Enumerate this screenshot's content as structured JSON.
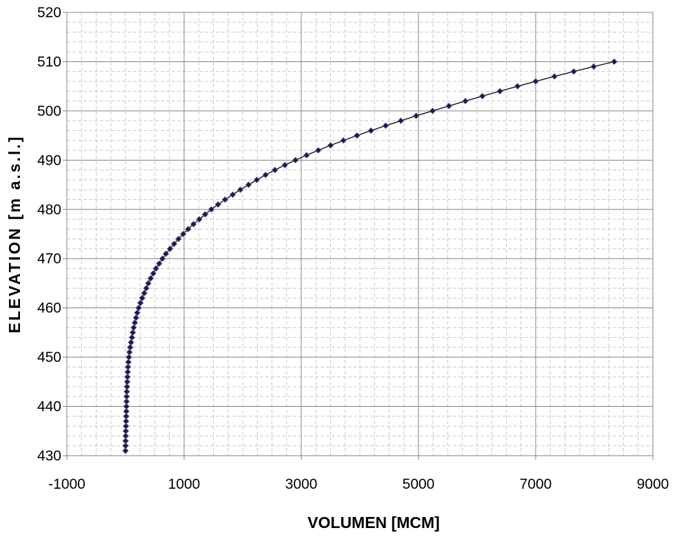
{
  "chart_data": {
    "type": "scatter",
    "title": "",
    "xlabel": "VOLUMEN  [MCM]",
    "ylabel": "ELEVATION [m a.s.l.]",
    "xlim": [
      -1000,
      9000
    ],
    "ylim": [
      430,
      520
    ],
    "x_ticks": [
      -1000,
      1000,
      3000,
      5000,
      7000,
      9000
    ],
    "x_tick_labels": [
      "-1000",
      "1000",
      "3000",
      "5000",
      "7000",
      "9000"
    ],
    "y_ticks": [
      430,
      440,
      450,
      460,
      470,
      480,
      490,
      500,
      510,
      520
    ],
    "y_tick_labels": [
      "430",
      "440",
      "450",
      "460",
      "470",
      "480",
      "490",
      "500",
      "510",
      "520"
    ],
    "grid": true,
    "legend": "none",
    "series_color": "#1a1a4a",
    "marker": "diamond",
    "line": "connected",
    "series": [
      {
        "x": [
          0,
          1,
          2,
          4,
          6,
          8,
          10,
          12,
          14,
          16,
          18,
          20,
          23,
          26,
          30,
          34,
          39,
          44,
          50,
          58,
          68,
          80,
          95,
          110,
          125,
          140,
          160,
          180,
          200,
          225,
          255,
          285,
          320,
          355,
          390,
          430,
          475,
          520,
          575,
          630,
          690,
          760,
          830,
          905,
          985,
          1070,
          1160,
          1260,
          1360,
          1465,
          1580,
          1700,
          1830,
          1960,
          2100,
          2240,
          2390,
          2550,
          2720,
          2900,
          3090,
          3290,
          3500,
          3720,
          3950,
          4190,
          4440,
          4700,
          4960,
          5240,
          5520,
          5800,
          6090,
          6390,
          6690,
          7000,
          7320,
          7650,
          7990,
          8340
        ],
        "y": [
          431,
          432,
          433,
          434,
          435,
          436,
          437,
          438,
          439,
          440,
          441,
          442,
          443,
          444,
          445,
          446,
          447,
          448,
          449,
          450,
          451,
          452,
          453,
          454,
          455,
          456,
          457,
          458,
          459,
          460,
          461,
          462,
          463,
          464,
          465,
          466,
          467,
          468,
          469,
          470,
          471,
          472,
          473,
          474,
          475,
          476,
          477,
          478,
          479,
          480,
          481,
          482,
          483,
          484,
          485,
          486,
          487,
          488,
          489,
          490,
          491,
          492,
          493,
          494,
          495,
          496,
          497,
          498,
          499,
          500,
          501,
          502,
          503,
          504,
          505,
          506,
          507,
          508,
          509,
          510
        ]
      }
    ]
  }
}
